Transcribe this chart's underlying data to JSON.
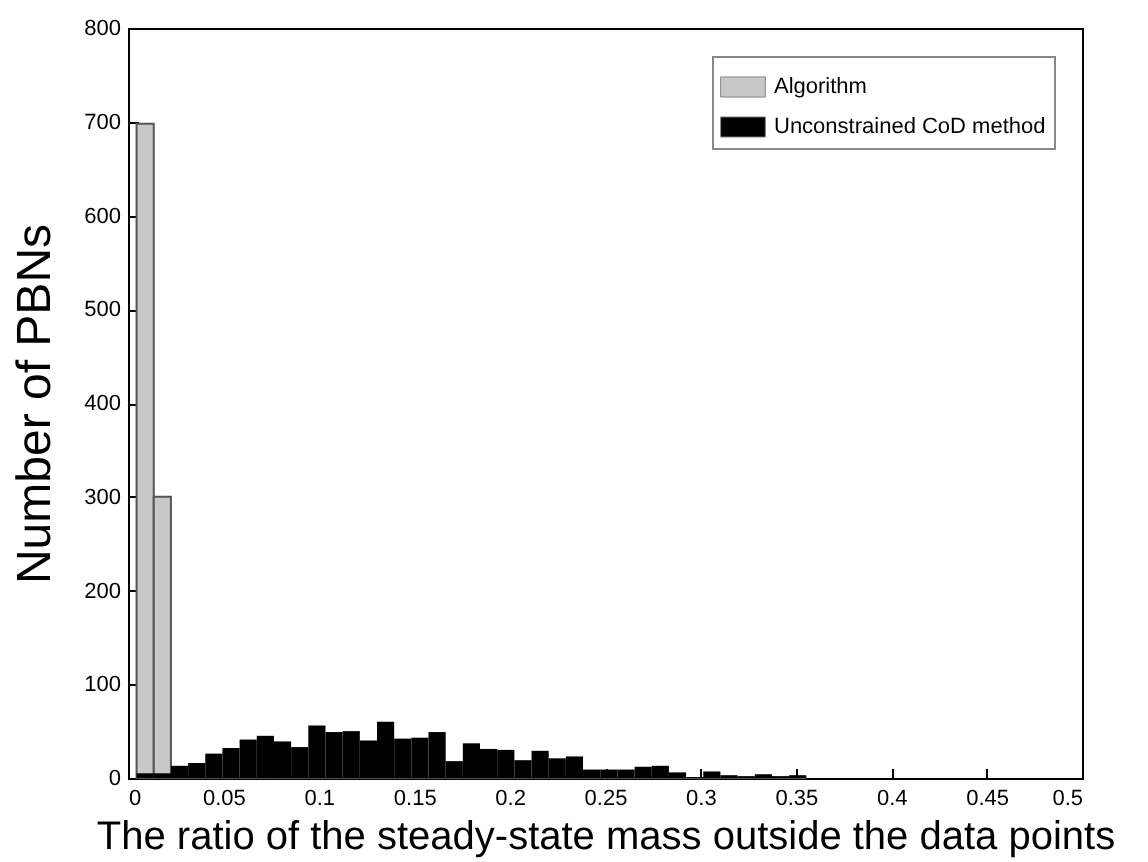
{
  "chart_data": {
    "type": "histogram",
    "xlabel": "The ratio of the steady-state mass outside the data points",
    "ylabel": "Number of PBNs",
    "bins": [
      0.0045,
      0.0135,
      0.0225,
      0.0315,
      0.0405,
      0.0495,
      0.0585,
      0.0675,
      0.0765,
      0.0855,
      0.0945,
      0.1035,
      0.1125,
      0.1215,
      0.1305,
      0.1395,
      0.1485,
      0.1575,
      0.1665,
      0.1755,
      0.1845,
      0.1935,
      0.2025,
      0.2115,
      0.2205,
      0.2295,
      0.2385,
      0.2475,
      0.2565,
      0.2655,
      0.2745,
      0.2835,
      0.2925,
      0.3015,
      0.3105,
      0.3195,
      0.3285,
      0.3375,
      0.3465,
      0.3555
    ],
    "series": [
      {
        "name": "Algorithm",
        "color": "#c8c8c8",
        "values": [
          698,
          300,
          0,
          0,
          0,
          0,
          0,
          0,
          0,
          0,
          0,
          0,
          0,
          0,
          0,
          0,
          0,
          0,
          0,
          0,
          0,
          0,
          0,
          0,
          0,
          0,
          0,
          0,
          0,
          0,
          0,
          0,
          0,
          0,
          0,
          0,
          0,
          0,
          0
        ]
      },
      {
        "name": "Unconstrained CoD method",
        "color": "#000000",
        "values": [
          5,
          5,
          13,
          16,
          26,
          32,
          41,
          45,
          39,
          33,
          56,
          49,
          50,
          40,
          60,
          42,
          43,
          49,
          18,
          37,
          31,
          30,
          19,
          29,
          21,
          23,
          9,
          9,
          9,
          12,
          13,
          6,
          1,
          7,
          3,
          2,
          4,
          2,
          3
        ]
      }
    ],
    "xlim": [
      0,
      0.5
    ],
    "xticks": [
      0,
      0.05,
      0.1,
      0.15,
      0.2,
      0.25,
      0.3,
      0.35,
      0.4,
      0.45,
      0.5
    ],
    "ylim": [
      0,
      800
    ],
    "yticks": [
      0,
      100,
      200,
      300,
      400,
      500,
      600,
      700,
      800
    ],
    "legend": "top right"
  }
}
